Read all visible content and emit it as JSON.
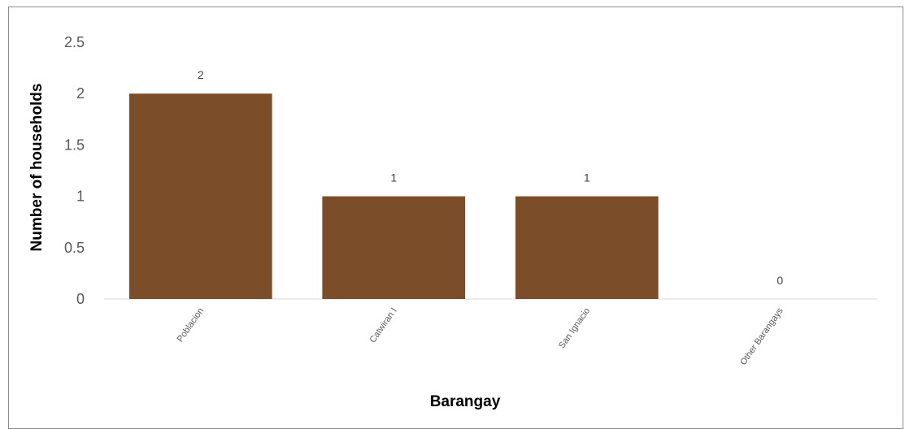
{
  "chart_data": {
    "type": "bar",
    "title": "",
    "xlabel": "Barangay",
    "ylabel": "Number of households",
    "categories": [
      "Poblacion",
      "Catwiran I",
      "San Ignacio",
      "Other Barangays"
    ],
    "values": [
      2,
      1,
      1,
      0
    ],
    "data_labels": [
      "2",
      "1",
      "1",
      "0"
    ],
    "y_ticks": [
      "0",
      "0.5",
      "1",
      "1.5",
      "2",
      "2.5"
    ],
    "ylim": [
      0,
      2.5
    ],
    "grid": false,
    "legend": "none",
    "bar_color": "#7b4d28"
  }
}
